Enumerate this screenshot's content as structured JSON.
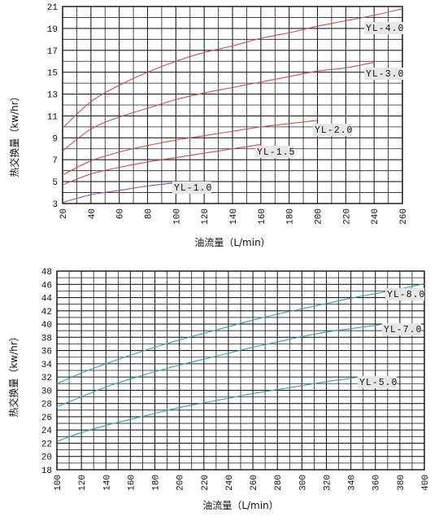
{
  "chart_data": [
    {
      "type": "line",
      "xlabel": "油流量（L/min）",
      "ylabel": "热交换量（kw/hr）",
      "xlim": [
        20,
        260
      ],
      "ylim": [
        3,
        21
      ],
      "x_ticks": [
        "20",
        "40",
        "60",
        "80",
        "100",
        "120",
        "140",
        "160",
        "180",
        "200",
        "220",
        "240",
        "260"
      ],
      "y_ticks": [
        "3",
        "5",
        "7",
        "9",
        "11",
        "13",
        "15",
        "17",
        "19",
        "21"
      ],
      "grid": true,
      "series": [
        {
          "name": "YL-4.0",
          "color": "#c8504c",
          "x": [
            20,
            40,
            60,
            80,
            100,
            120,
            140,
            160,
            180,
            200,
            220,
            240,
            260
          ],
          "y": [
            9.9,
            12.3,
            13.8,
            15.0,
            16.0,
            16.8,
            17.4,
            18.1,
            18.6,
            19.2,
            19.7,
            20.2,
            20.8
          ]
        },
        {
          "name": "YL-3.0",
          "color": "#c8504c",
          "x": [
            20,
            40,
            60,
            80,
            100,
            120,
            140,
            160,
            180,
            200,
            220,
            240
          ],
          "y": [
            7.8,
            9.8,
            10.9,
            11.7,
            12.5,
            13.1,
            13.6,
            14.1,
            14.6,
            15.1,
            15.4,
            15.9
          ]
        },
        {
          "name": "YL-2.0",
          "color": "#c8504c",
          "x": [
            20,
            40,
            60,
            80,
            100,
            120,
            140,
            160,
            180,
            200
          ],
          "y": [
            5.6,
            6.9,
            7.7,
            8.3,
            8.8,
            9.2,
            9.6,
            10.0,
            10.3,
            10.6
          ]
        },
        {
          "name": "YL-1.5",
          "color": "#c8504c",
          "x": [
            20,
            40,
            60,
            80,
            100,
            120,
            140,
            160
          ],
          "y": [
            4.7,
            5.7,
            6.3,
            6.8,
            7.2,
            7.6,
            8.0,
            8.4
          ]
        },
        {
          "name": "YL-1.0",
          "color": "#8a4fa3",
          "x": [
            20,
            40,
            60,
            80,
            100
          ],
          "y": [
            3.1,
            3.8,
            4.2,
            4.6,
            4.9
          ]
        }
      ]
    },
    {
      "type": "line",
      "xlabel": "油流量（L/min）",
      "ylabel": "热交换量（kw/hr）",
      "xlim": [
        100,
        400
      ],
      "ylim": [
        18,
        48
      ],
      "x_ticks": [
        "100",
        "120",
        "140",
        "160",
        "180",
        "200",
        "220",
        "240",
        "260",
        "280",
        "300",
        "320",
        "340",
        "360",
        "380",
        "400"
      ],
      "y_ticks": [
        "18",
        "20",
        "22",
        "24",
        "26",
        "28",
        "30",
        "32",
        "34",
        "36",
        "38",
        "40",
        "42",
        "44",
        "46",
        "48"
      ],
      "grid": true,
      "series": [
        {
          "name": "YL-8.0",
          "color": "#3aa0a4",
          "x": [
            100,
            120,
            140,
            160,
            180,
            200,
            220,
            240,
            260,
            280,
            300,
            320,
            340,
            360,
            380,
            400
          ],
          "y": [
            31.0,
            32.6,
            34.0,
            35.3,
            36.5,
            37.6,
            38.6,
            39.6,
            40.6,
            41.5,
            42.3,
            43.1,
            43.9,
            44.6,
            45.3,
            46.1
          ]
        },
        {
          "name": "YL-7.0",
          "color": "#3aa0a4",
          "x": [
            100,
            120,
            140,
            160,
            180,
            200,
            220,
            240,
            260,
            280,
            300,
            320,
            340,
            360,
            370
          ],
          "y": [
            27.5,
            29.0,
            30.5,
            31.7,
            32.8,
            33.8,
            34.7,
            35.6,
            36.5,
            37.3,
            38.1,
            38.8,
            39.3,
            39.8,
            40.1
          ]
        },
        {
          "name": "YL-5.0",
          "color": "#3aa0a4",
          "x": [
            100,
            120,
            140,
            160,
            180,
            200,
            220,
            240,
            260,
            280,
            300,
            320,
            340,
            350
          ],
          "y": [
            22.3,
            23.6,
            24.7,
            25.6,
            26.5,
            27.4,
            28.1,
            28.8,
            29.5,
            30.1,
            30.7,
            31.3,
            31.8,
            32.1
          ]
        }
      ]
    }
  ]
}
